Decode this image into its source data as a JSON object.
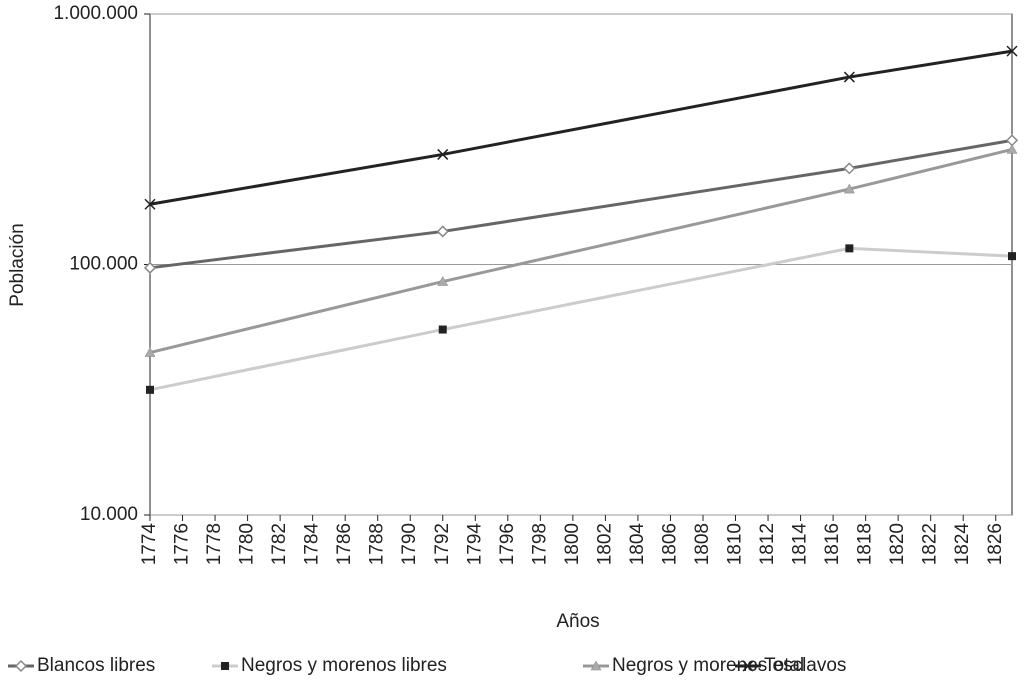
{
  "chart_data": {
    "type": "line",
    "x_label": "Años",
    "y_label": "Población",
    "x": [
      1774,
      1792,
      1817,
      1827
    ],
    "series": [
      {
        "name": "Blancos libres",
        "color": "#666666",
        "marker": "diamond",
        "marker_color": "#888888",
        "values": [
          97000,
          135500,
          242000,
          313000
        ]
      },
      {
        "name": "Negros y morenos libres",
        "color": "#cccccc",
        "marker": "square",
        "marker_color": "#222222",
        "values": [
          31600,
          55000,
          116000,
          108000
        ]
      },
      {
        "name": "Negros y morenos esclavos",
        "color": "#999999",
        "marker": "triangle",
        "marker_color": "#aaaaaa",
        "values": [
          44500,
          85500,
          200000,
          288000
        ]
      },
      {
        "name": "Total",
        "color": "#222222",
        "marker": "x",
        "marker_color": "#222222",
        "values": [
          174000,
          275000,
          560000,
          711000
        ]
      }
    ],
    "xlim": [
      1774,
      1827
    ],
    "xticks": [
      1774,
      1776,
      1778,
      1780,
      1782,
      1784,
      1786,
      1788,
      1790,
      1792,
      1794,
      1796,
      1798,
      1800,
      1802,
      1804,
      1806,
      1808,
      1810,
      1812,
      1814,
      1816,
      1818,
      1820,
      1822,
      1824,
      1826
    ],
    "ylim": [
      10000,
      1000000
    ],
    "log_scale": true,
    "yticks": [
      {
        "value": 10000,
        "label": "10.000"
      },
      {
        "value": 100000,
        "label": "100.000"
      },
      {
        "value": 1000000,
        "label": "1.000.000"
      }
    ],
    "grid": true
  }
}
